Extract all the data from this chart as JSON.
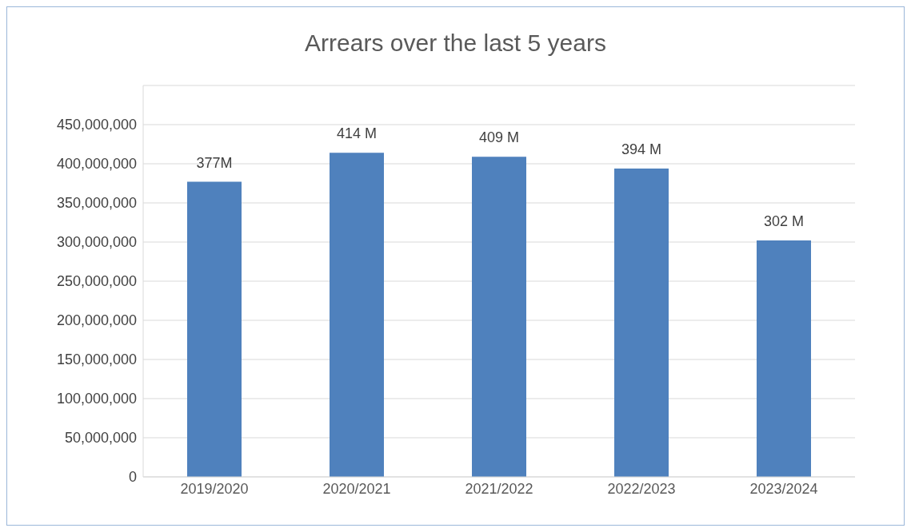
{
  "chart_data": {
    "type": "bar",
    "title": "Arrears over the last 5 years",
    "categories": [
      "2019/2020",
      "2020/2021",
      "2021/2022",
      "2022/2023",
      "2023/2024"
    ],
    "values": [
      377000000,
      414000000,
      409000000,
      394000000,
      302000000
    ],
    "value_labels": [
      "377M",
      "414 M",
      "409 M",
      "394 M",
      "302 M"
    ],
    "color": "#4f81bd",
    "ylim": [
      0,
      500000000
    ],
    "yticks": [
      {
        "value": 0,
        "label": "0"
      },
      {
        "value": 50000000,
        "label": "50,000,000"
      },
      {
        "value": 100000000,
        "label": "100,000,000"
      },
      {
        "value": 150000000,
        "label": "150,000,000"
      },
      {
        "value": 200000000,
        "label": "200,000,000"
      },
      {
        "value": 250000000,
        "label": "250,000,000"
      },
      {
        "value": 300000000,
        "label": "300,000,000"
      },
      {
        "value": 350000000,
        "label": "350,000,000"
      },
      {
        "value": 400000000,
        "label": "400,000,000"
      },
      {
        "value": 450000000,
        "label": "450,000,000"
      }
    ],
    "grid": "y"
  }
}
